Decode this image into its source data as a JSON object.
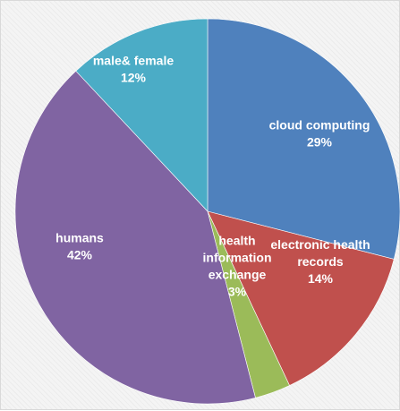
{
  "chart_data": {
    "type": "pie",
    "title": "",
    "slices": [
      {
        "name": "cloud computing",
        "value": 29,
        "label_lines": [
          "cloud computing"
        ],
        "pct": "29%",
        "color": "#4f81bd"
      },
      {
        "name": "electronic health records",
        "value": 14,
        "label_lines": [
          "electronic health",
          "records"
        ],
        "pct": "14%",
        "color": "#c0504d"
      },
      {
        "name": "health information exchange",
        "value": 3,
        "label_lines": [
          "health",
          "information",
          "exchange"
        ],
        "pct": "3%",
        "color": "#9bbb59"
      },
      {
        "name": "humans",
        "value": 42,
        "label_lines": [
          "humans"
        ],
        "pct": "42%",
        "color": "#8064a2"
      },
      {
        "name": "male& female",
        "value": 12,
        "label_lines": [
          "male& female"
        ],
        "pct": "12%",
        "color": "#4bacc6"
      }
    ],
    "start_angle_deg": 0,
    "direction": "clockwise",
    "legend": "none"
  }
}
